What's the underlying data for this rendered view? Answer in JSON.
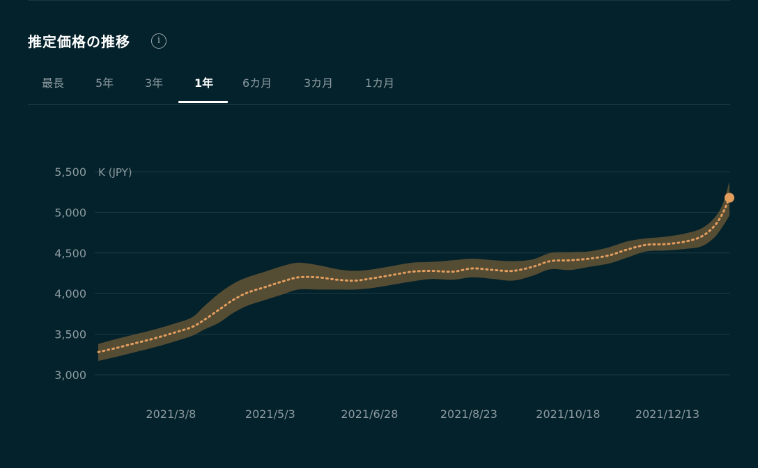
{
  "header": {
    "title": "推定価格の推移",
    "info_icon": "info-icon"
  },
  "tabs": [
    {
      "label": "最長",
      "active": false
    },
    {
      "label": "5年",
      "active": false
    },
    {
      "label": "3年",
      "active": false
    },
    {
      "label": "1年",
      "active": true
    },
    {
      "label": "6カ月",
      "active": false
    },
    {
      "label": "3カ月",
      "active": false
    },
    {
      "label": "1カ月",
      "active": false
    }
  ],
  "colors": {
    "background": "#04222b",
    "band": "#5a4f35",
    "line": "#e39e5e",
    "grid": "#1d3a44",
    "tab_active": "#ffffff"
  },
  "chart_data": {
    "type": "line",
    "unit_label": "K (JPY)",
    "ylim": [
      3000,
      5500
    ],
    "yticks": [
      3000,
      3500,
      4000,
      4500,
      5000,
      5500
    ],
    "ytick_labels": [
      "3,000",
      "3,500",
      "4,000",
      "4,500",
      "5,000",
      "5,500"
    ],
    "xticks": [
      "2021/3/8",
      "2021/5/3",
      "2021/6/28",
      "2021/8/23",
      "2021/10/18",
      "2021/12/13"
    ],
    "x_range": [
      "2021-01-26",
      "2022-01-17"
    ],
    "grid": true,
    "series": [
      {
        "style": "dotted",
        "points": [
          [
            "2021-01-26",
            3280
          ],
          [
            "2021-02-05",
            3330
          ],
          [
            "2021-02-16",
            3390
          ],
          [
            "2021-02-27",
            3450
          ],
          [
            "2021-03-10",
            3520
          ],
          [
            "2021-03-20",
            3590
          ],
          [
            "2021-03-27",
            3680
          ],
          [
            "2021-04-04",
            3800
          ],
          [
            "2021-04-12",
            3920
          ],
          [
            "2021-04-20",
            4010
          ],
          [
            "2021-04-30",
            4080
          ],
          [
            "2021-05-10",
            4150
          ],
          [
            "2021-05-19",
            4200
          ],
          [
            "2021-05-30",
            4200
          ],
          [
            "2021-06-10",
            4170
          ],
          [
            "2021-06-20",
            4160
          ],
          [
            "2021-06-30",
            4190
          ],
          [
            "2021-07-11",
            4230
          ],
          [
            "2021-07-22",
            4270
          ],
          [
            "2021-08-02",
            4280
          ],
          [
            "2021-08-14",
            4270
          ],
          [
            "2021-08-25",
            4310
          ],
          [
            "2021-09-06",
            4290
          ],
          [
            "2021-09-17",
            4280
          ],
          [
            "2021-09-28",
            4330
          ],
          [
            "2021-10-08",
            4400
          ],
          [
            "2021-10-19",
            4410
          ],
          [
            "2021-10-30",
            4430
          ],
          [
            "2021-11-10",
            4470
          ],
          [
            "2021-11-20",
            4540
          ],
          [
            "2021-12-01",
            4600
          ],
          [
            "2021-12-12",
            4610
          ],
          [
            "2021-12-23",
            4640
          ],
          [
            "2022-01-01",
            4700
          ],
          [
            "2022-01-08",
            4820
          ],
          [
            "2022-01-13",
            4980
          ],
          [
            "2022-01-17",
            5180
          ]
        ]
      }
    ],
    "confidence_band": {
      "upper": [
        3380,
        3440,
        3500,
        3560,
        3630,
        3710,
        3850,
        4000,
        4120,
        4200,
        4270,
        4340,
        4380,
        4350,
        4300,
        4280,
        4300,
        4340,
        4380,
        4390,
        4410,
        4430,
        4410,
        4400,
        4420,
        4500,
        4510,
        4520,
        4570,
        4640,
        4680,
        4700,
        4740,
        4800,
        4920,
        5090,
        5380
      ],
      "lower": [
        3170,
        3220,
        3280,
        3340,
        3410,
        3480,
        3560,
        3640,
        3760,
        3850,
        3920,
        3990,
        4050,
        4050,
        4050,
        4050,
        4070,
        4110,
        4150,
        4180,
        4170,
        4200,
        4180,
        4160,
        4220,
        4300,
        4290,
        4330,
        4370,
        4440,
        4520,
        4530,
        4550,
        4580,
        4680,
        4820,
        4960
      ]
    },
    "last_point": [
      "2022-01-17",
      5180
    ]
  }
}
